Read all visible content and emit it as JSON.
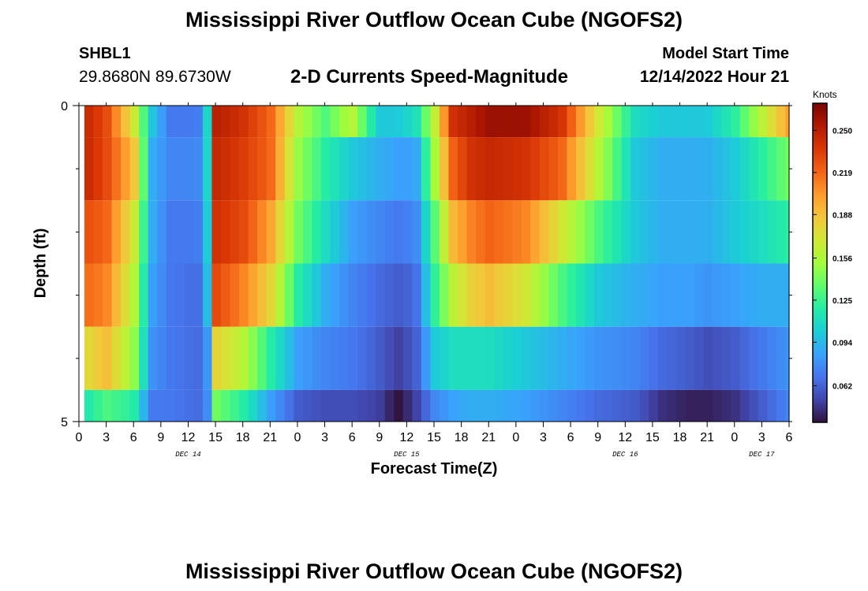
{
  "header": {
    "title": "Mississippi River Outflow Ocean Cube (NGOFS2)",
    "station": "SHBL1",
    "coords": "29.8680N  89.6730W",
    "subtitle": "2-D Currents Speed-Magnitude",
    "model_start_label": "Model Start Time",
    "model_start_value": "12/14/2022 Hour 21"
  },
  "footer": {
    "title": "Mississippi River Outflow Ocean Cube (NGOFS2)"
  },
  "chart_data": {
    "type": "heatmap",
    "ylabel": "Depth (ft)",
    "xlabel": "Forecast Time(Z)",
    "ylim": [
      0,
      5
    ],
    "y_ticks": [
      "0",
      "5"
    ],
    "x_range_hours": [
      0,
      78
    ],
    "x_tick_labels": [
      "0",
      "3",
      "6",
      "9",
      "12",
      "15",
      "18",
      "21",
      "0",
      "3",
      "6",
      "9",
      "12",
      "15",
      "18",
      "21",
      "0",
      "3",
      "6",
      "9",
      "12",
      "15",
      "18",
      "21",
      "0",
      "3",
      "6"
    ],
    "date_labels": [
      {
        "label": "DEC 14",
        "hour": 12
      },
      {
        "label": "DEC 15",
        "hour": 36
      },
      {
        "label": "DEC 16",
        "hour": 60
      },
      {
        "label": "DEC 17",
        "hour": 75
      }
    ],
    "colorbar": {
      "units": "Knots",
      "min": 0.035,
      "max": 0.27,
      "ticks": [
        "0.250",
        "0.219",
        "0.188",
        "0.156",
        "0.125",
        "0.094",
        "0.062"
      ],
      "colors": [
        "#30123b",
        "#4145ab",
        "#4675ed",
        "#39a2fc",
        "#1bcfd4",
        "#24eca6",
        "#61fc6c",
        "#a4fc3b",
        "#d1e834",
        "#f3c63a",
        "#fe9b2d",
        "#f36315",
        "#d93806",
        "#b11901",
        "#7a0403"
      ]
    },
    "forecast_start_hour": 0.6,
    "hours": [
      0,
      3,
      6,
      8,
      10,
      13,
      14,
      15,
      18,
      21,
      24,
      27,
      30,
      33,
      35,
      37,
      39,
      41,
      43,
      45,
      49,
      53,
      57,
      61,
      64,
      67,
      69,
      72,
      75,
      78
    ],
    "layers": [
      {
        "depth_range": [
          0,
          0.5
        ],
        "speeds": [
          0.25,
          0.23,
          0.17,
          0.1,
          0.07,
          0.07,
          0.09,
          0.25,
          0.24,
          0.22,
          0.16,
          0.13,
          0.16,
          0.1,
          0.1,
          0.11,
          0.16,
          0.24,
          0.25,
          0.26,
          0.26,
          0.24,
          0.17,
          0.11,
          0.1,
          0.1,
          0.1,
          0.12,
          0.16,
          0.2
        ]
      },
      {
        "depth_range": [
          0.5,
          1.5
        ],
        "speeds": [
          0.25,
          0.23,
          0.19,
          0.09,
          0.075,
          0.075,
          0.09,
          0.245,
          0.235,
          0.22,
          0.15,
          0.12,
          0.1,
          0.09,
          0.085,
          0.085,
          0.15,
          0.22,
          0.24,
          0.245,
          0.24,
          0.22,
          0.16,
          0.1,
          0.09,
          0.09,
          0.09,
          0.1,
          0.12,
          0.14
        ]
      },
      {
        "depth_range": [
          1.5,
          2.5
        ],
        "speeds": [
          0.23,
          0.22,
          0.17,
          0.09,
          0.07,
          0.07,
          0.085,
          0.24,
          0.23,
          0.2,
          0.14,
          0.11,
          0.085,
          0.075,
          0.07,
          0.075,
          0.13,
          0.19,
          0.21,
          0.22,
          0.21,
          0.17,
          0.13,
          0.1,
          0.09,
          0.09,
          0.09,
          0.1,
          0.11,
          0.12
        ]
      },
      {
        "depth_range": [
          2.5,
          3.5
        ],
        "speeds": [
          0.22,
          0.21,
          0.16,
          0.085,
          0.07,
          0.065,
          0.08,
          0.23,
          0.21,
          0.18,
          0.12,
          0.09,
          0.075,
          0.065,
          0.06,
          0.065,
          0.12,
          0.16,
          0.18,
          0.19,
          0.17,
          0.13,
          0.1,
          0.09,
          0.085,
          0.085,
          0.08,
          0.085,
          0.09,
          0.09
        ]
      },
      {
        "depth_range": [
          3.5,
          4.5
        ],
        "speeds": [
          0.17,
          0.19,
          0.15,
          0.08,
          0.07,
          0.065,
          0.07,
          0.18,
          0.16,
          0.12,
          0.085,
          0.075,
          0.07,
          0.06,
          0.05,
          0.06,
          0.1,
          0.11,
          0.11,
          0.11,
          0.1,
          0.09,
          0.08,
          0.075,
          0.065,
          0.06,
          0.055,
          0.06,
          0.07,
          0.08
        ]
      },
      {
        "depth_range": [
          4.5,
          5
        ],
        "speeds": [
          0.11,
          0.13,
          0.12,
          0.07,
          0.07,
          0.065,
          0.07,
          0.14,
          0.12,
          0.085,
          0.06,
          0.055,
          0.055,
          0.05,
          0.035,
          0.05,
          0.075,
          0.085,
          0.09,
          0.09,
          0.085,
          0.075,
          0.065,
          0.06,
          0.045,
          0.04,
          0.04,
          0.045,
          0.06,
          0.075
        ]
      }
    ]
  }
}
